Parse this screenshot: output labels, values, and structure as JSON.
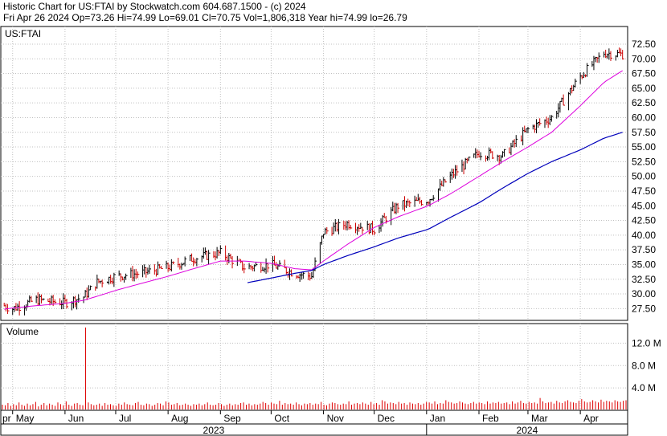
{
  "header": {
    "line1": "Historic Chart for US:FTAI by Stockwatch.com 604.687.1500 - (c) 2024",
    "line2": "Fri Apr 26 2024   Op=73.26  Hi=74.99  Lo=69.01  Cl=70.75  Vol=1,806,318   Year hi=74.99  lo=26.79"
  },
  "colors": {
    "price_bars": "#000000",
    "down_bars": "#cc0000",
    "ma_short": "#dd00dd",
    "ma_long": "#0000bb",
    "volume": "#dd0000",
    "grid": "#c0c0c0"
  },
  "chart_data": [
    {
      "type": "line",
      "title": "US:FTAI",
      "ylim": [
        25.5,
        75.5
      ],
      "grid": true,
      "y_ticks": [
        "27.50",
        "30.00",
        "32.50",
        "35.00",
        "37.50",
        "40.00",
        "42.50",
        "45.00",
        "47.50",
        "50.00",
        "52.50",
        "55.00",
        "57.50",
        "60.00",
        "62.50",
        "65.00",
        "67.50",
        "70.00",
        "72.50"
      ],
      "y_tick_values": [
        27.5,
        30,
        32.5,
        35,
        37.5,
        40,
        42.5,
        45,
        47.5,
        50,
        52.5,
        55,
        57.5,
        60,
        62.5,
        65,
        67.5,
        70,
        72.5
      ],
      "x_ticks": [
        "pr",
        "May",
        "Jun",
        "Jul",
        "Aug",
        "Sep",
        "Oct",
        "Nov",
        "Dec",
        "Jan",
        "Feb",
        "Mar",
        "Apr"
      ],
      "years": [
        "2023",
        "2024"
      ],
      "x": [
        "2023-04-26",
        "2023-05-01",
        "2023-05-15",
        "2023-06-01",
        "2023-06-12",
        "2023-06-20",
        "2023-07-01",
        "2023-07-15",
        "2023-08-01",
        "2023-08-15",
        "2023-09-01",
        "2023-09-15",
        "2023-10-01",
        "2023-10-15",
        "2023-10-25",
        "2023-11-01",
        "2023-11-15",
        "2023-12-01",
        "2023-12-15",
        "2024-01-02",
        "2024-01-15",
        "2024-02-01",
        "2024-02-15",
        "2024-03-01",
        "2024-03-15",
        "2024-04-01",
        "2024-04-15",
        "2024-04-26"
      ],
      "series": [
        {
          "values": [
            28.0,
            27.5,
            29.0,
            28.5,
            29.5,
            32.0,
            33.0,
            33.5,
            34.5,
            36.0,
            37.0,
            34.5,
            35.0,
            33.5,
            33.0,
            40.5,
            42.0,
            41.0,
            45.0,
            46.0,
            50.0,
            54.0,
            53.5,
            58.0,
            60.0,
            67.0,
            71.0,
            70.75
          ]
        },
        {
          "values": [
            27.4,
            27.6,
            28.0,
            28.4,
            28.9,
            29.6,
            30.6,
            31.7,
            33.0,
            34.2,
            35.6,
            35.6,
            35.2,
            34.3,
            34.1,
            35.6,
            38.4,
            41.3,
            43.1,
            45.0,
            47.0,
            50.0,
            52.5,
            55.0,
            57.5,
            62.0,
            66.0,
            68.0
          ]
        },
        {
          "values": [
            null,
            null,
            null,
            null,
            null,
            null,
            null,
            null,
            null,
            null,
            null,
            31.8,
            32.7,
            33.5,
            34.0,
            35.0,
            36.5,
            38.0,
            39.5,
            41.0,
            43.0,
            45.5,
            48.0,
            50.5,
            52.5,
            54.5,
            56.5,
            57.5
          ]
        }
      ]
    },
    {
      "type": "bar",
      "title": "Volume",
      "ylim": [
        0,
        15.5
      ],
      "y_ticks": [
        "4.0 M",
        "8.0 M",
        "12.0 M"
      ],
      "y_tick_values": [
        4,
        8,
        12
      ],
      "note_units": "millions of shares",
      "values": [
        1.0,
        0.9,
        1.3,
        0.8,
        1.1,
        0.9,
        1.4,
        1.0,
        0.8,
        1.2,
        0.9,
        1.1,
        1.5,
        0.7,
        1.0,
        1.3,
        0.9,
        1.2,
        1.0,
        0.8,
        1.4,
        1.1,
        0.9,
        1.6,
        1.0,
        0.8,
        1.2,
        1.3,
        1.0,
        0.9,
        14.8,
        1.4,
        1.1,
        0.9,
        1.0,
        1.2,
        0.8,
        1.3,
        1.0,
        1.1,
        0.9,
        0.8,
        1.2,
        1.0,
        1.4,
        1.1,
        1.0,
        0.9,
        1.3,
        1.5,
        1.0,
        0.9,
        1.2,
        1.1,
        0.8,
        1.0,
        1.3,
        1.2,
        0.9,
        1.6,
        1.4,
        1.0,
        1.1,
        1.3,
        0.9,
        1.0,
        1.2,
        1.0,
        0.8,
        1.1,
        1.0,
        1.2,
        0.9,
        1.1,
        1.4,
        1.0,
        0.9,
        1.0,
        1.3,
        1.1,
        0.8,
        1.0,
        1.2,
        0.9,
        1.1,
        1.0,
        1.3,
        1.4,
        1.0,
        1.2,
        0.9,
        1.1,
        1.0,
        1.2,
        1.5,
        1.3,
        1.0,
        1.4,
        1.2,
        1.1,
        1.7,
        1.0,
        1.3,
        1.1,
        1.2,
        1.0,
        1.4,
        1.1,
        0.9,
        1.2,
        1.1,
        1.3,
        1.0,
        1.2,
        1.1,
        1.5,
        1.0,
        0.9,
        1.2,
        1.4,
        1.3,
        1.1,
        1.0,
        1.2,
        1.1,
        1.6,
        1.0,
        1.2,
        1.3,
        1.1,
        1.4,
        1.2,
        1.0,
        1.5,
        1.1,
        1.3,
        1.0,
        1.8,
        1.6,
        1.2,
        1.4,
        1.3,
        1.1,
        1.5,
        1.2,
        1.3,
        1.0,
        1.4,
        1.2,
        1.1,
        1.3,
        1.0,
        1.2,
        1.5,
        1.4,
        1.2,
        1.6,
        1.1,
        1.3,
        1.2,
        1.8,
        1.5,
        1.4,
        1.2,
        1.3,
        1.6,
        1.4,
        1.2,
        1.1,
        1.3,
        1.5,
        1.2,
        1.4,
        1.3,
        1.1,
        1.6,
        1.2,
        1.4,
        1.3,
        1.5,
        1.2,
        1.3,
        1.4,
        1.1,
        1.6,
        1.2,
        1.4,
        1.7,
        1.3,
        1.2,
        1.5,
        1.3,
        1.4,
        1.2,
        2.2,
        1.6,
        1.3,
        1.4,
        1.5,
        1.2,
        1.7,
        1.4,
        1.3,
        1.6,
        1.8,
        1.5,
        1.4,
        1.3,
        1.7,
        2.0,
        1.6,
        1.4,
        1.5,
        1.8,
        1.6,
        1.4,
        1.9,
        1.5,
        1.7,
        1.6,
        1.4,
        1.8,
        1.6,
        1.5,
        1.7,
        1.8
      ]
    }
  ]
}
